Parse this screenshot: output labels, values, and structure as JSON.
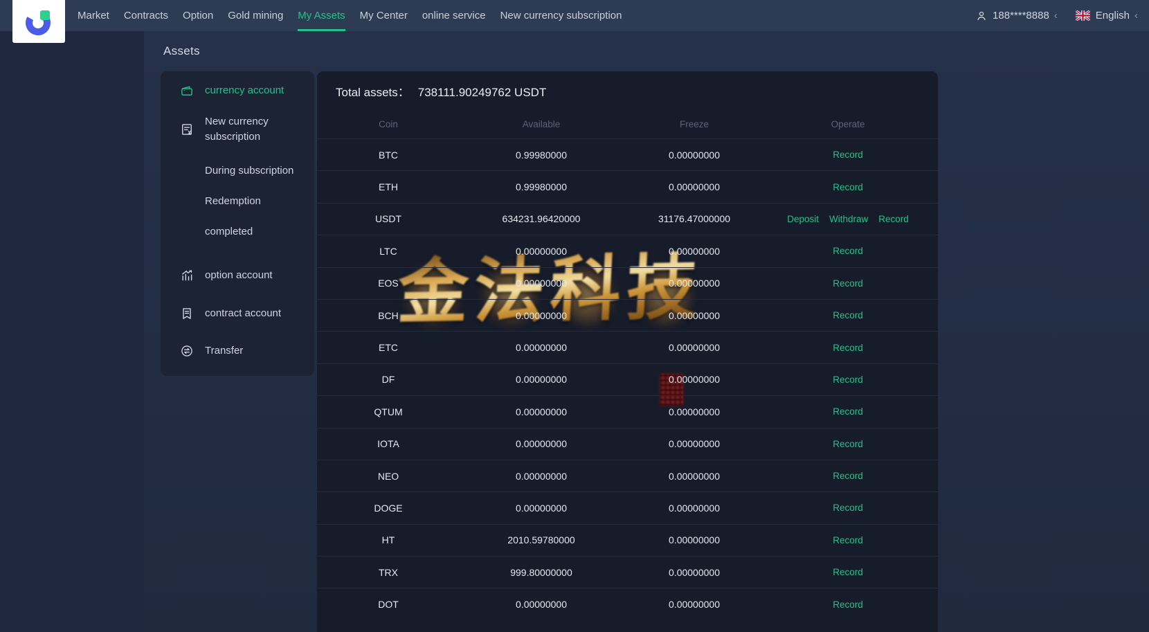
{
  "nav": {
    "items": [
      "Market",
      "Contracts",
      "Option",
      "Gold mining",
      "My Assets",
      "My Center",
      "online service",
      "New currency subscription"
    ],
    "active": "My Assets",
    "user_phone": "188****8888",
    "language": "English",
    "icons": [
      "user-icon",
      "uk-flag-icon",
      "chevron-icon"
    ]
  },
  "page": {
    "title": "Assets"
  },
  "sidebar": {
    "items": [
      {
        "label": "currency account",
        "icon": "wallet-icon",
        "active": true
      },
      {
        "label": "New currency subscription",
        "icon": "subscription-doc-icon"
      },
      {
        "label": "During subscription",
        "sub": true
      },
      {
        "label": "Redemption",
        "sub": true
      },
      {
        "label": "completed",
        "sub": true
      },
      {
        "label": "option account",
        "icon": "option-chart-icon"
      },
      {
        "label": "contract account",
        "icon": "contract-icon"
      },
      {
        "label": "Transfer",
        "icon": "transfer-icon"
      }
    ]
  },
  "assets": {
    "total_label": "Total assets：",
    "total_value": "738111.90249762 USDT",
    "columns": [
      "Coin",
      "Available",
      "Freeze",
      "Operate"
    ],
    "rows": [
      {
        "coin": "BTC",
        "available": "0.99980000",
        "freeze": "0.00000000",
        "ops": [
          "Record"
        ]
      },
      {
        "coin": "ETH",
        "available": "0.99980000",
        "freeze": "0.00000000",
        "ops": [
          "Record"
        ]
      },
      {
        "coin": "USDT",
        "available": "634231.96420000",
        "freeze": "31176.47000000",
        "ops": [
          "Deposit",
          "Withdraw",
          "Record"
        ]
      },
      {
        "coin": "LTC",
        "available": "0.00000000",
        "freeze": "0.00000000",
        "ops": [
          "Record"
        ]
      },
      {
        "coin": "EOS",
        "available": "0.00000000",
        "freeze": "0.00000000",
        "ops": [
          "Record"
        ]
      },
      {
        "coin": "BCH",
        "available": "0.00000000",
        "freeze": "0.00000000",
        "ops": [
          "Record"
        ]
      },
      {
        "coin": "ETC",
        "available": "0.00000000",
        "freeze": "0.00000000",
        "ops": [
          "Record"
        ]
      },
      {
        "coin": "DF",
        "available": "0.00000000",
        "freeze": "0.00000000",
        "ops": [
          "Record"
        ]
      },
      {
        "coin": "QTUM",
        "available": "0.00000000",
        "freeze": "0.00000000",
        "ops": [
          "Record"
        ]
      },
      {
        "coin": "IOTA",
        "available": "0.00000000",
        "freeze": "0.00000000",
        "ops": [
          "Record"
        ]
      },
      {
        "coin": "NEO",
        "available": "0.00000000",
        "freeze": "0.00000000",
        "ops": [
          "Record"
        ]
      },
      {
        "coin": "DOGE",
        "available": "0.00000000",
        "freeze": "0.00000000",
        "ops": [
          "Record"
        ]
      },
      {
        "coin": "HT",
        "available": "2010.59780000",
        "freeze": "0.00000000",
        "ops": [
          "Record"
        ]
      },
      {
        "coin": "TRX",
        "available": "999.80000000",
        "freeze": "0.00000000",
        "ops": [
          "Record"
        ]
      },
      {
        "coin": "DOT",
        "available": "0.00000000",
        "freeze": "0.00000000",
        "ops": [
          "Record"
        ]
      }
    ]
  },
  "watermark": {
    "text": "金法科技"
  },
  "colors": {
    "accent": "#27c08c",
    "nav_bg": "#2d3c53",
    "panel_bg": "#171c2a",
    "gold_watermark": "#d9a83f",
    "seal_red": "#8c1a1c"
  }
}
